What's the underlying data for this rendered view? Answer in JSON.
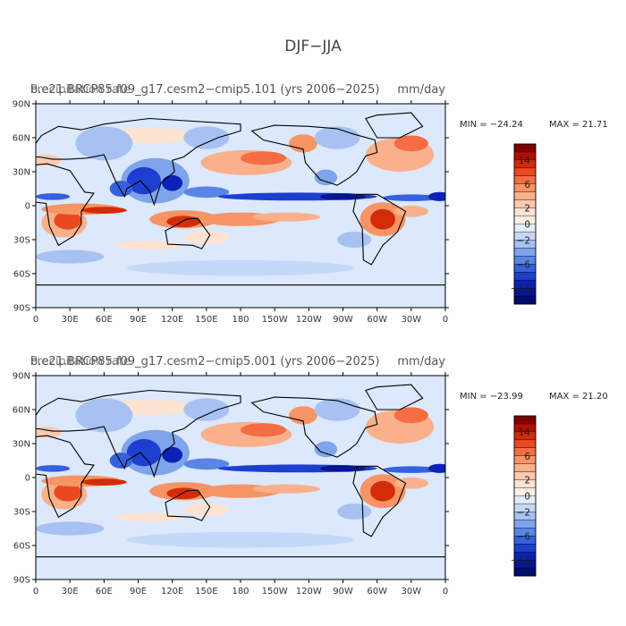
{
  "figure_title": "DJF−JJA",
  "chart_data": [
    {
      "type": "heatmap",
      "subtitle_left": "b.e21.BRCP85.f09_g17.cesm2−cmip5.101 (yrs 2006−2025)",
      "subtitle_overlay_left": "Precipitation rate",
      "subtitle_right": "mm/day",
      "min_label": "MIN = −24.24",
      "max_label": "MAX =  21.71",
      "y_ticks": [
        "90N",
        "60N",
        "30N",
        "0",
        "30S",
        "60S",
        "90S"
      ],
      "x_ticks": [
        "0",
        "30E",
        "60E",
        "90E",
        "120E",
        "150E",
        "180",
        "150W",
        "120W",
        "90W",
        "60W",
        "30W",
        "0"
      ],
      "colorbar_labels": [
        "14",
        "6",
        "2",
        "0",
        "−2",
        "−6",
        "−14"
      ]
    },
    {
      "type": "heatmap",
      "subtitle_left": "b.e21.BRCP85.f09_g17.cesm2−cmip5.001 (yrs 2006−2025)",
      "subtitle_overlay_left": "Precipitation rate",
      "subtitle_right": "mm/day",
      "min_label": "MIN = −23.99",
      "max_label": "MAX =  21.20",
      "y_ticks": [
        "90N",
        "60N",
        "30N",
        "0",
        "30S",
        "60S",
        "90S"
      ],
      "x_ticks": [
        "0",
        "30E",
        "60E",
        "90E",
        "120E",
        "150E",
        "180",
        "150W",
        "120W",
        "90W",
        "60W",
        "30W",
        "0"
      ],
      "colorbar_labels": [
        "14",
        "6",
        "2",
        "0",
        "−2",
        "−6",
        "−14"
      ]
    }
  ],
  "colors": {
    "scale": [
      "#7f0000",
      "#b30f00",
      "#d42b0b",
      "#e8491e",
      "#f46d43",
      "#f79464",
      "#f9b08b",
      "#fbcab0",
      "#fde3d2",
      "#fdf0e6",
      "#e2ecfb",
      "#c6d8f7",
      "#a7c1f2",
      "#7fa4ec",
      "#5a84e6",
      "#3561dd",
      "#1d3fcf",
      "#0b22b8",
      "#061591",
      "#020b6e"
    ]
  }
}
